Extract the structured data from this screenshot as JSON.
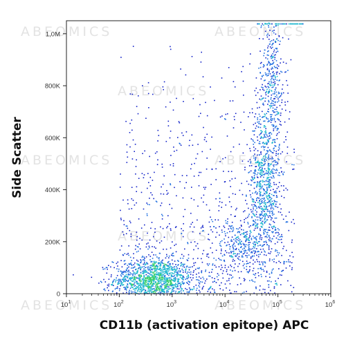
{
  "watermark_text": "ABEOMICS",
  "chart_data": {
    "type": "scatter",
    "title": "",
    "xlabel": "CD11b (activation epitope) APC",
    "ylabel": "Side Scatter",
    "x_scale": "log",
    "xlim": [
      10,
      1000000
    ],
    "ylim": [
      0,
      1050000
    ],
    "grid": false,
    "x_ticks": [
      {
        "value": 10,
        "base": "10",
        "exp": "1"
      },
      {
        "value": 100,
        "base": "10",
        "exp": "2"
      },
      {
        "value": 1000,
        "base": "10",
        "exp": "3"
      },
      {
        "value": 10000,
        "base": "10",
        "exp": "4"
      },
      {
        "value": 100000,
        "base": "10",
        "exp": "5"
      },
      {
        "value": 1000000,
        "base": "10",
        "exp": "6"
      }
    ],
    "y_ticks": [
      {
        "value": 0,
        "label": "0"
      },
      {
        "value": 200000,
        "label": "200K"
      },
      {
        "value": 400000,
        "label": "400K"
      },
      {
        "value": 600000,
        "label": "600K"
      },
      {
        "value": 800000,
        "label": "800K"
      },
      {
        "value": 1000000,
        "label": "1,0M"
      }
    ],
    "density_colors": [
      "#1020c8",
      "#1e6ee0",
      "#22b8d0",
      "#3cd070",
      "#e8e020",
      "#f07818",
      "#e01818"
    ],
    "populations": [
      {
        "x_center": 450,
        "y_center": 55000,
        "x_spread_decades": 0.38,
        "y_spread": 42000,
        "events": 1300
      },
      {
        "x_center": 55000,
        "y_center": 420000,
        "x_spread_decades": 0.14,
        "y_spread": 150000,
        "events": 700
      },
      {
        "x_center": 75000,
        "y_center": 820000,
        "x_spread_decades": 0.13,
        "y_spread": 140000,
        "events": 380
      },
      {
        "x_center": 22000,
        "y_center": 190000,
        "x_spread_decades": 0.3,
        "y_spread": 55000,
        "events": 300
      }
    ]
  }
}
